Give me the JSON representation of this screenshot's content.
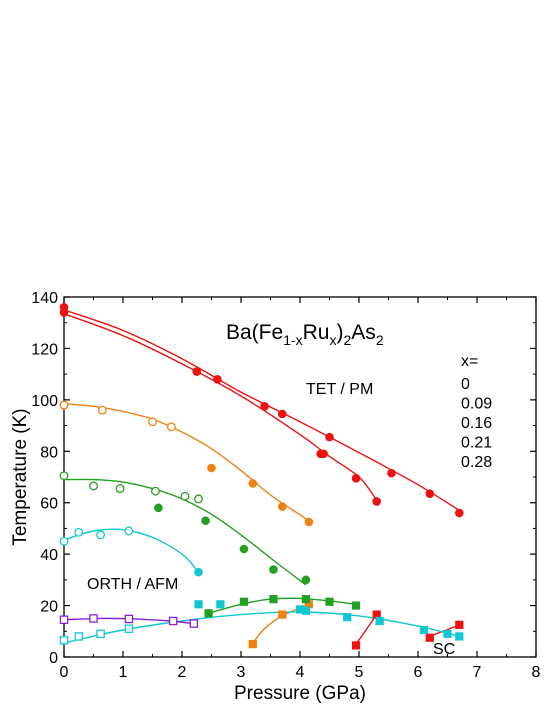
{
  "chart_data": {
    "type": "scatter",
    "title_parts": {
      "a": "Ba(Fe",
      "sub1": "1-x",
      "b": "Ru",
      "sub2": "x",
      "c": ")",
      "sub3": "2",
      "d": "As",
      "sub4": "2"
    },
    "xlabel": "Pressure (GPa)",
    "ylabel": "Temperature (K)",
    "xlim": [
      0,
      8
    ],
    "ylim": [
      0,
      140
    ],
    "xticks": [
      0,
      1,
      2,
      3,
      4,
      5,
      6,
      7,
      8
    ],
    "yticks": [
      0,
      20,
      40,
      60,
      80,
      100,
      120,
      140
    ],
    "annotations": {
      "tet": "TET / PM",
      "orth": "ORTH / AFM",
      "sc": "SC"
    },
    "legend": {
      "title": "x=",
      "position": "right",
      "entries": [
        {
          "label": "0",
          "color": "#ee1111"
        },
        {
          "label": "0.09",
          "color": "#f08010"
        },
        {
          "label": "0.16",
          "color": "#22a020"
        },
        {
          "label": "0.21",
          "color": "#10c8d0"
        },
        {
          "label": "0.28",
          "color": "#8a20d8"
        }
      ]
    },
    "series": [
      {
        "color": "#ee1111",
        "marker": "circle",
        "fill": "filled",
        "points": [
          [
            0,
            136
          ],
          [
            0,
            134
          ],
          [
            2.25,
            111
          ],
          [
            2.6,
            108
          ],
          [
            3.4,
            97.5
          ],
          [
            3.7,
            94.5
          ],
          [
            4.35,
            79
          ],
          [
            4.4,
            79
          ],
          [
            4.5,
            85.5
          ],
          [
            4.95,
            69.5
          ],
          [
            5.3,
            60.5
          ],
          [
            5.55,
            71.5
          ],
          [
            6.2,
            63.5
          ],
          [
            6.7,
            56
          ]
        ]
      },
      {
        "color": "#ee1111",
        "marker": "square",
        "fill": "filled",
        "points": [
          [
            4.95,
            4.5
          ],
          [
            5.3,
            16.5
          ],
          [
            6.2,
            7.5
          ],
          [
            6.7,
            12.5
          ]
        ]
      },
      {
        "color": "#f08010",
        "marker": "circle",
        "fill": "open",
        "points": [
          [
            0,
            98
          ],
          [
            0.65,
            96
          ],
          [
            1.5,
            91.5
          ],
          [
            1.82,
            89.5
          ]
        ]
      },
      {
        "color": "#f08010",
        "marker": "circle",
        "fill": "filled",
        "points": [
          [
            2.5,
            73.5
          ],
          [
            3.2,
            67.5
          ],
          [
            3.7,
            58.5
          ],
          [
            4.15,
            52.5
          ]
        ]
      },
      {
        "color": "#f08010",
        "marker": "square",
        "fill": "filled",
        "points": [
          [
            3.2,
            5
          ],
          [
            3.7,
            16.5
          ],
          [
            4.15,
            20.5
          ]
        ]
      },
      {
        "color": "#22a020",
        "marker": "circle",
        "fill": "open",
        "points": [
          [
            0,
            70.5
          ],
          [
            0.5,
            66.5
          ],
          [
            0.95,
            65.5
          ],
          [
            1.55,
            64.5
          ],
          [
            2.05,
            62.5
          ],
          [
            2.28,
            61.5
          ]
        ]
      },
      {
        "color": "#22a020",
        "marker": "circle",
        "fill": "filled",
        "points": [
          [
            1.6,
            58
          ],
          [
            2.4,
            53
          ],
          [
            3.05,
            42
          ],
          [
            3.55,
            34
          ],
          [
            4.1,
            30
          ]
        ]
      },
      {
        "color": "#22a020",
        "marker": "square",
        "fill": "filled",
        "points": [
          [
            2.45,
            17
          ],
          [
            3.05,
            21.5
          ],
          [
            3.55,
            22.5
          ],
          [
            4.1,
            22.5
          ],
          [
            4.5,
            21.5
          ],
          [
            4.95,
            20
          ]
        ]
      },
      {
        "color": "#10c8d0",
        "marker": "circle",
        "fill": "open",
        "points": [
          [
            0,
            45
          ],
          [
            0.25,
            48.5
          ],
          [
            0.62,
            47.5
          ],
          [
            1.1,
            49
          ]
        ]
      },
      {
        "color": "#10c8d0",
        "marker": "circle",
        "fill": "filled",
        "points": [
          [
            2.28,
            33
          ]
        ]
      },
      {
        "color": "#10c8d0",
        "marker": "square",
        "fill": "open",
        "points": [
          [
            0,
            6.5
          ],
          [
            0.25,
            8
          ],
          [
            0.62,
            9
          ],
          [
            1.1,
            11
          ]
        ]
      },
      {
        "color": "#10c8d0",
        "marker": "square",
        "fill": "filled",
        "points": [
          [
            2.28,
            20.5
          ],
          [
            2.65,
            20.5
          ],
          [
            4.0,
            18.5
          ],
          [
            4.1,
            18
          ],
          [
            4.8,
            15.5
          ],
          [
            5.35,
            14
          ],
          [
            6.1,
            10.5
          ],
          [
            6.5,
            9
          ],
          [
            6.7,
            8
          ]
        ]
      },
      {
        "color": "#8a20d8",
        "marker": "square",
        "fill": "open",
        "points": [
          [
            0,
            14.5
          ],
          [
            0.5,
            15
          ],
          [
            1.1,
            14.8
          ],
          [
            1.85,
            14
          ],
          [
            2.2,
            13
          ]
        ]
      }
    ],
    "fit_curves": [
      {
        "color": "#ee1111",
        "points": [
          [
            0,
            135
          ],
          [
            1,
            127
          ],
          [
            2,
            116
          ],
          [
            3,
            103
          ],
          [
            4,
            91.5
          ],
          [
            5,
            79.5
          ],
          [
            6,
            67
          ],
          [
            6.7,
            57
          ]
        ]
      },
      {
        "color": "#ee1111",
        "points": [
          [
            0,
            133.5
          ],
          [
            1,
            125
          ],
          [
            2,
            114
          ],
          [
            3,
            101.5
          ],
          [
            4,
            86.5
          ],
          [
            4.5,
            78
          ],
          [
            5,
            70
          ],
          [
            5.3,
            61
          ]
        ]
      },
      {
        "color": "#ee1111",
        "points": [
          [
            4.95,
            5
          ],
          [
            5.3,
            16.5
          ]
        ]
      },
      {
        "color": "#ee1111",
        "points": [
          [
            6.2,
            8
          ],
          [
            6.7,
            12.5
          ]
        ]
      },
      {
        "color": "#f08010",
        "points": [
          [
            0,
            98.5
          ],
          [
            0.5,
            97.5
          ],
          [
            1,
            95.5
          ],
          [
            1.5,
            92.5
          ],
          [
            2,
            87.5
          ],
          [
            2.5,
            81
          ],
          [
            3,
            72.5
          ],
          [
            3.5,
            63
          ],
          [
            4.15,
            53
          ]
        ]
      },
      {
        "color": "#f08010",
        "points": [
          [
            3.2,
            5.5
          ],
          [
            3.4,
            11
          ],
          [
            3.7,
            16
          ],
          [
            4.15,
            20.5
          ]
        ]
      },
      {
        "color": "#22a020",
        "points": [
          [
            0,
            69
          ],
          [
            0.5,
            69
          ],
          [
            1,
            68
          ],
          [
            1.5,
            65.5
          ],
          [
            2,
            61.5
          ],
          [
            2.5,
            55.5
          ],
          [
            3,
            47.5
          ],
          [
            3.5,
            38.5
          ],
          [
            4.1,
            28
          ]
        ]
      },
      {
        "color": "#22a020",
        "points": [
          [
            2.45,
            17
          ],
          [
            3,
            20.5
          ],
          [
            3.5,
            22.5
          ],
          [
            4,
            22.8
          ],
          [
            4.5,
            21.8
          ],
          [
            4.95,
            20.5
          ]
        ]
      },
      {
        "color": "#10c8d0",
        "points": [
          [
            0,
            45.5
          ],
          [
            0.5,
            49
          ],
          [
            1,
            49.5
          ],
          [
            1.5,
            46.5
          ],
          [
            2,
            40
          ],
          [
            2.28,
            33
          ]
        ]
      },
      {
        "color": "#10c8d0",
        "points": [
          [
            0,
            5.5
          ],
          [
            1,
            10.5
          ],
          [
            2,
            14
          ],
          [
            3,
            16.5
          ],
          [
            4,
            17.5
          ],
          [
            5,
            16
          ],
          [
            6,
            12
          ],
          [
            6.7,
            8
          ]
        ]
      },
      {
        "color": "#8a20d8",
        "points": [
          [
            0,
            14.5
          ],
          [
            0.6,
            15
          ],
          [
            1.2,
            14.8
          ],
          [
            1.8,
            14
          ],
          [
            2.2,
            13
          ]
        ]
      }
    ]
  }
}
